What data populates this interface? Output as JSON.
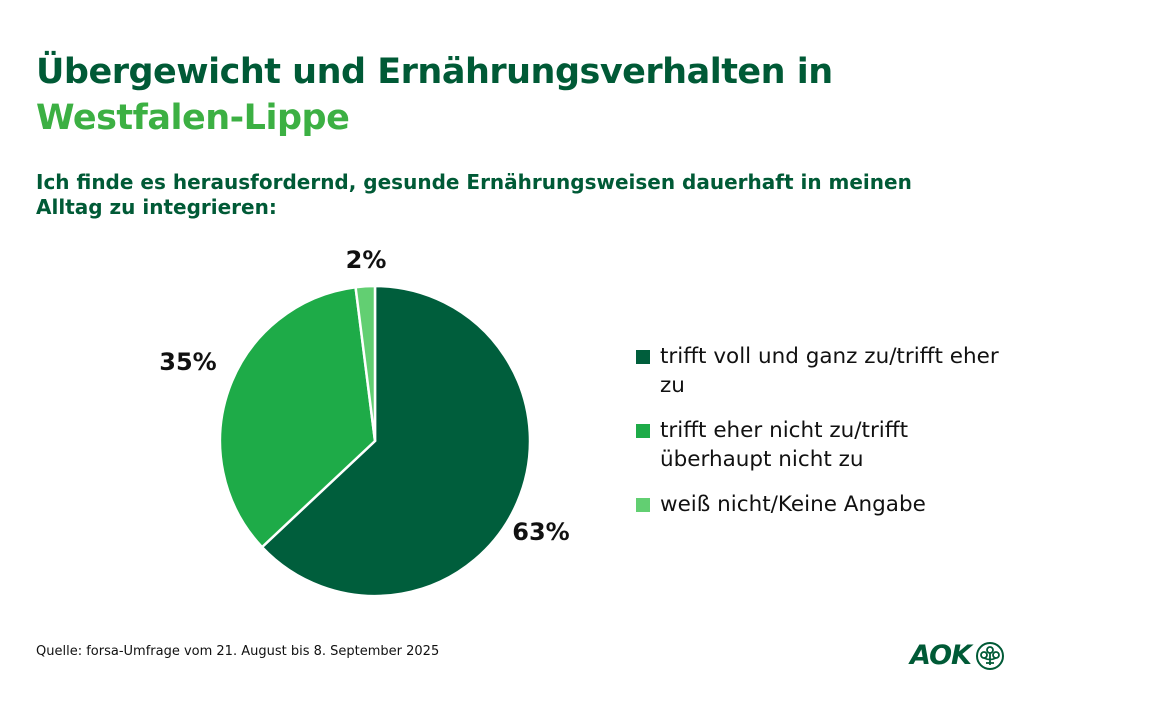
{
  "title_line1": "Übergewicht und Ernährungsverhalten in",
  "title_line2": "Westfalen-Lippe",
  "subtitle": "Ich finde es herausfordernd, gesunde Ernährungsweisen dauerhaft in meinen Alltag zu integrieren:",
  "source": "Quelle: forsa-Umfrage vom 21. August bis 8. September 2025",
  "logo_text": "AOK",
  "chart_data": {
    "type": "pie",
    "title": "Ich finde es herausfordernd, gesunde Ernährungsweisen dauerhaft in meinen Alltag zu integrieren:",
    "legend_position": "right",
    "slices": [
      {
        "label": "trifft voll und ganz zu/trifft eher zu",
        "value": 63,
        "display": "63%",
        "color": "#005e3c"
      },
      {
        "label": "trifft eher nicht zu/trifft überhaupt nicht zu",
        "value": 35,
        "display": "35%",
        "color": "#1eab48"
      },
      {
        "label": "weiß nicht/Keine Angabe",
        "value": 2,
        "display": "2%",
        "color": "#62cf72"
      }
    ]
  }
}
